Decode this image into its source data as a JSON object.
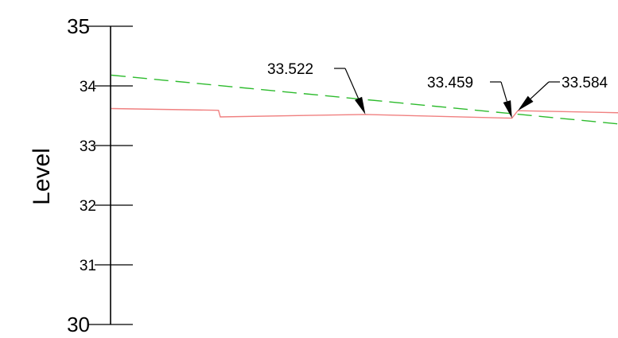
{
  "chart_data": {
    "type": "line",
    "ylabel": "Level",
    "ylim": [
      30,
      35
    ],
    "yticks": [
      30,
      31,
      32,
      33,
      34,
      35
    ],
    "ytick_labels": [
      "30",
      "31",
      "32",
      "33",
      "34",
      "35"
    ],
    "grid": false,
    "series": [
      {
        "style": "solid",
        "color": "#f08080",
        "points": [
          [
            0,
            33.62
          ],
          [
            0.296,
            33.59
          ],
          [
            0.301,
            33.48
          ],
          [
            0.702,
            33.522
          ],
          [
            1.107,
            33.459
          ],
          [
            1.123,
            33.584
          ],
          [
            1.406,
            33.55
          ]
        ]
      },
      {
        "style": "dashed",
        "color": "#2dbb2d",
        "points": [
          [
            0,
            34.18
          ],
          [
            1.406,
            33.36
          ]
        ]
      }
    ],
    "annotations": [
      {
        "text": "33.522",
        "x": 0.702,
        "y": 33.522
      },
      {
        "text": "33.459",
        "x": 1.107,
        "y": 33.459
      },
      {
        "text": "33.584",
        "x": 1.123,
        "y": 33.584
      }
    ]
  }
}
